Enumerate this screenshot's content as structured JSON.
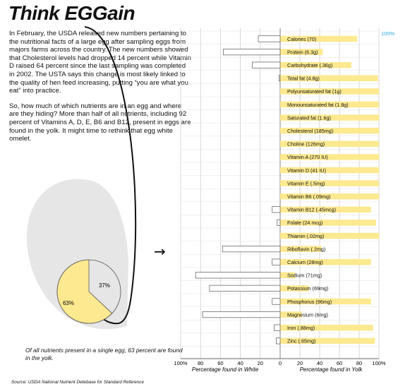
{
  "header": {
    "title": "Think EGGain"
  },
  "intro": {
    "paragraph1": "In February, the USDA released new numbers pertaining to the nutritional facts of a large egg after sampling eggs from majors farms across the country. The new numbers showed that Cholesterol levels had dropped 14 percent while Vitamin D raised 64 percent since the last sampling was completed in 2002. The USTA says this change is most likely linked to the quality of hen feed increasing, putting “you are what you eat” into practice.",
    "paragraph2": "So, how much of which nutrients are in an egg and where are they hiding? More than half of all nutrients, including 92 percent of Vitamins A, D, E, B6 and B12, present in eggs are found in the yolk. It might time to rethink that egg white omelet."
  },
  "egg_chart": {
    "yolk_label": "63%",
    "white_label": "37%",
    "caption": "Of all nutrients present in a single egg, 63 percent are found in the yolk.",
    "colors": {
      "yolk": "#fde98f",
      "white": "#e6e6e6",
      "outline": "#111111"
    }
  },
  "arrow_glyph": "→",
  "source": "Source: USDA National Nutrient Detebase for Standard Reference",
  "chart_data": {
    "type": "bar",
    "orientation": "horizontal",
    "top_marker": "100%",
    "categories": [
      "Calories (70)",
      "Protein (6.3g)",
      "Carbohydrate (.36g)",
      "Total fat (4.8g)",
      "Polyunsaturated fat (1g)",
      "Monounsaturated fat (1.8g)",
      "Saturated fat (1.6g)",
      "Cholesterol (185mg)",
      "Choline (126mg)",
      "Vitamin A (270 IU)",
      "Vitamin D (41 IU)",
      "Vitamin E (.5mg)",
      "Vitamin B6 (.09mg)",
      "Vitamin B12 (.45mcg)",
      "Folate (24 mcg)",
      "Thiamin (.02mg)",
      "Riboflavin (.2mg)",
      "Calcium (28mg)",
      "Sodium (71mg)",
      "Potassium (69mg)",
      "Phosphorus (96mg)",
      "Magnesium (6mg)",
      "Iron (.88mg)",
      "Zinc (.65mg)"
    ],
    "series": [
      {
        "name": "Percentage found in White",
        "color": "#ffffff",
        "values": [
          22,
          57,
          28,
          1,
          0,
          0,
          0,
          0,
          0,
          0,
          0,
          0,
          0,
          8,
          3,
          0,
          58,
          8,
          85,
          71,
          8,
          78,
          6,
          4
        ]
      },
      {
        "name": "Percentage found in Yolk",
        "color": "#fde98f",
        "values": [
          78,
          43,
          72,
          99,
          100,
          100,
          100,
          100,
          100,
          100,
          100,
          100,
          100,
          92,
          97,
          100,
          42,
          92,
          15,
          29,
          92,
          22,
          94,
          96
        ]
      }
    ],
    "x_ticks_left": [
      "100%",
      "80",
      "60",
      "40",
      "20",
      "0"
    ],
    "x_ticks_right": [
      "20",
      "40",
      "60",
      "80",
      "100%"
    ],
    "xlabel_left": "Percentage found in White",
    "xlabel_right": "Percentage found in Yolk",
    "xlim": [
      -100,
      100
    ],
    "grid": true
  }
}
